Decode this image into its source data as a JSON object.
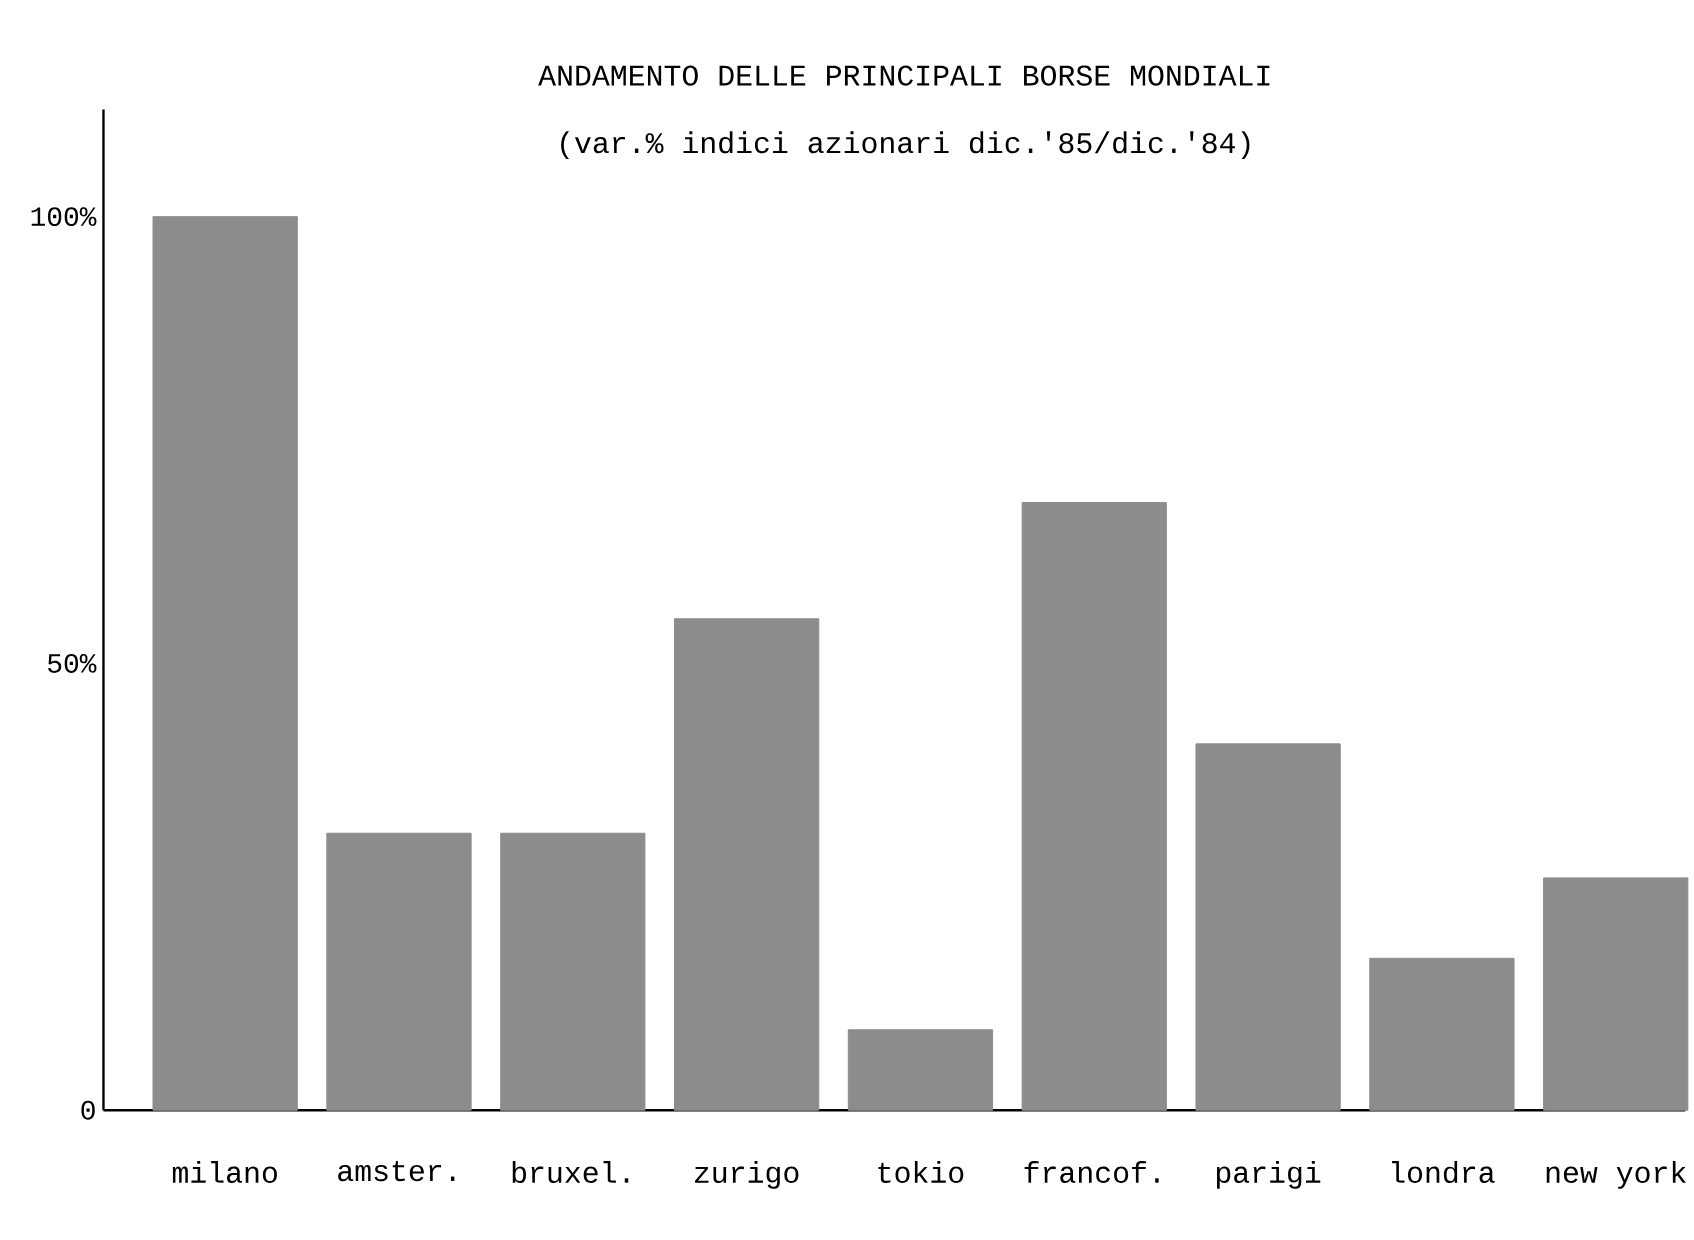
{
  "chart_data": {
    "type": "bar",
    "title": "ANDAMENTO DELLE PRINCIPALI BORSE MONDIALI",
    "subtitle": "(var.% indici azionari dic.'85/dic.'84)",
    "categories": [
      "milano",
      "amster.",
      "bruxel.",
      "zurigo",
      "tokio",
      "francof.",
      "parigi",
      "londra",
      "new york"
    ],
    "values": [
      100,
      31,
      31,
      55,
      9,
      68,
      41,
      17,
      26
    ],
    "color": "#8c8c8c",
    "ylim": [
      0,
      112
    ],
    "yticks": [
      0,
      {
        "value": 50,
        "label": "50%"
      },
      {
        "value": 100,
        "label": "100%"
      }
    ]
  }
}
